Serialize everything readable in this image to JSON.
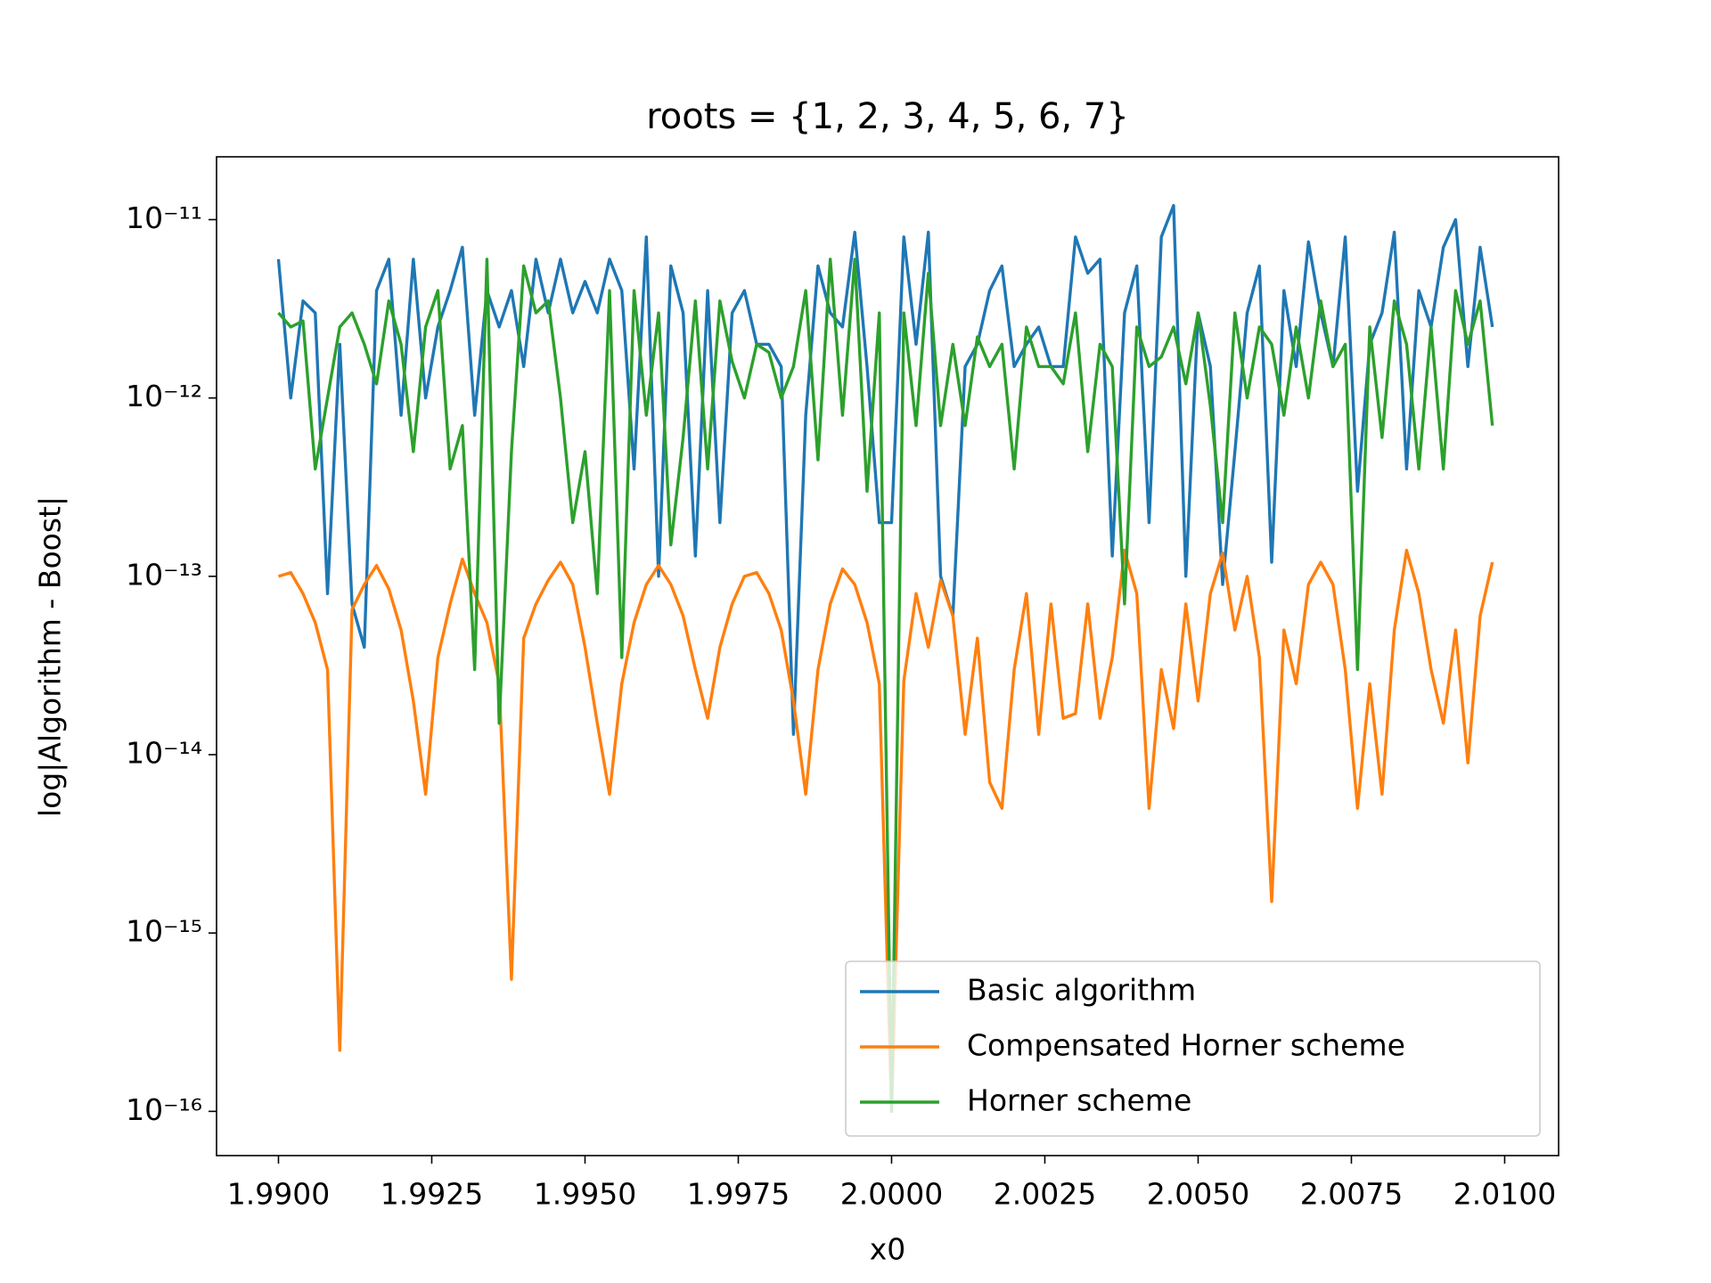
{
  "chart_data": {
    "type": "line",
    "title": "roots = {1, 2, 3, 4, 5, 6, 7}",
    "xlabel": "x0",
    "ylabel": "log|Algorithm - Boost|",
    "yscale": "log",
    "legend_loc": "lower right",
    "xlim": [
      1.98899,
      2.01088
    ],
    "ylim": [
      5.65e-17,
      2.25e-11
    ],
    "xticks": [
      {
        "value": 1.99,
        "label": "1.9900"
      },
      {
        "value": 1.9925,
        "label": "1.9925"
      },
      {
        "value": 1.995,
        "label": "1.9950"
      },
      {
        "value": 1.9975,
        "label": "1.9975"
      },
      {
        "value": 2,
        "label": "2.0000"
      },
      {
        "value": 2.0025,
        "label": "2.0025"
      },
      {
        "value": 2.005,
        "label": "2.0050"
      },
      {
        "value": 2.0075,
        "label": "2.0075"
      },
      {
        "value": 2.01,
        "label": "2.0100"
      }
    ],
    "yticks": [
      {
        "value": 1e-16,
        "label": "10⁻¹⁶"
      },
      {
        "value": 1e-15,
        "label": "10⁻¹⁵"
      },
      {
        "value": 1e-14,
        "label": "10⁻¹⁴"
      },
      {
        "value": 1e-13,
        "label": "10⁻¹³"
      },
      {
        "value": 1e-12,
        "label": "10⁻¹²"
      },
      {
        "value": 1e-11,
        "label": "10⁻¹¹"
      }
    ],
    "x": [
      1.99,
      1.9902,
      1.9904,
      1.9906,
      1.9908,
      1.991,
      1.9912,
      1.9914,
      1.9916,
      1.9918,
      1.992,
      1.9922,
      1.9924,
      1.9926,
      1.9928,
      1.993,
      1.9932,
      1.9934,
      1.9936,
      1.9938,
      1.994,
      1.9942,
      1.9944,
      1.9946,
      1.9948,
      1.995,
      1.9952,
      1.9954,
      1.9956,
      1.9958,
      1.996,
      1.9962,
      1.9964,
      1.9966,
      1.9968,
      1.997,
      1.9972,
      1.9974,
      1.9976,
      1.9978,
      1.998,
      1.9982,
      1.9984,
      1.9986,
      1.9988,
      1.999,
      1.9992,
      1.9994,
      1.9996,
      1.9998,
      2.0,
      2.0002,
      2.0004,
      2.0006,
      2.0008,
      2.001,
      2.0012,
      2.0014,
      2.0016,
      2.0018,
      2.002,
      2.0022,
      2.0024,
      2.0026,
      2.0028,
      2.003,
      2.0032,
      2.0034,
      2.0036,
      2.0038,
      2.004,
      2.0042,
      2.0044,
      2.0046,
      2.0048,
      2.005,
      2.0052,
      2.0054,
      2.0056,
      2.0058,
      2.006,
      2.0062,
      2.0064,
      2.0066,
      2.0068,
      2.007,
      2.0072,
      2.0074,
      2.0076,
      2.0078,
      2.008,
      2.0082,
      2.0084,
      2.0086,
      2.0088,
      2.009,
      2.0092,
      2.0094,
      2.0096,
      2.0098
    ],
    "series": [
      {
        "name": "Basic algorithm",
        "color": "#1f77b4",
        "values": [
          6e-12,
          1e-12,
          3.5e-12,
          3e-12,
          8e-14,
          2e-12,
          7e-14,
          4e-14,
          4e-12,
          6e-12,
          8e-13,
          6e-12,
          1e-12,
          2.5e-12,
          4e-12,
          7e-12,
          8e-13,
          4e-12,
          2.5e-12,
          4e-12,
          1.5e-12,
          6e-12,
          3e-12,
          6e-12,
          3e-12,
          4.5e-12,
          3e-12,
          6e-12,
          4e-12,
          4e-13,
          8e-12,
          1e-13,
          5.5e-12,
          3e-12,
          1.3e-13,
          4e-12,
          2e-13,
          3e-12,
          4e-12,
          2e-12,
          2e-12,
          1.5e-12,
          1.3e-14,
          8e-13,
          5.5e-12,
          3e-12,
          2.5e-12,
          8.5e-12,
          1.5e-12,
          2e-13,
          2e-13,
          8e-12,
          2e-12,
          8.5e-12,
          1e-13,
          6e-14,
          1.5e-12,
          2e-12,
          4e-12,
          5.5e-12,
          1.5e-12,
          2e-12,
          2.5e-12,
          1.5e-12,
          1.5e-12,
          8e-12,
          5e-12,
          6e-12,
          1.3e-13,
          3e-12,
          5.5e-12,
          2e-13,
          8e-12,
          1.2e-11,
          1e-13,
          3e-12,
          1.5e-12,
          9e-14,
          5e-13,
          3e-12,
          5.5e-12,
          1.2e-13,
          4e-12,
          1.5e-12,
          7.5e-12,
          3e-12,
          1.5e-12,
          8e-12,
          3e-13,
          2e-12,
          3e-12,
          8.5e-12,
          4e-13,
          4e-12,
          2.5e-12,
          7e-12,
          1e-11,
          1.5e-12,
          7e-12,
          2.5e-12
        ]
      },
      {
        "name": "Compensated Horner scheme",
        "color": "#ff7f0e",
        "values": [
          1e-13,
          1.05e-13,
          8e-14,
          5.5e-14,
          3e-14,
          2.2e-16,
          6.5e-14,
          9e-14,
          1.15e-13,
          8.5e-14,
          5e-14,
          2e-14,
          6e-15,
          3.5e-14,
          7e-14,
          1.25e-13,
          8e-14,
          5.5e-14,
          2.5e-14,
          5.5e-16,
          4.5e-14,
          7e-14,
          9.5e-14,
          1.2e-13,
          9e-14,
          4e-14,
          1.5e-14,
          6e-15,
          2.5e-14,
          5.5e-14,
          9e-14,
          1.15e-13,
          9e-14,
          6e-14,
          3e-14,
          1.6e-14,
          4e-14,
          7e-14,
          1e-13,
          1.05e-13,
          8e-14,
          5e-14,
          2e-14,
          6e-15,
          3e-14,
          7e-14,
          1.1e-13,
          9e-14,
          5.5e-14,
          2.5e-14,
          1e-16,
          2.6e-14,
          8e-14,
          4e-14,
          9.5e-14,
          6e-14,
          1.3e-14,
          4.5e-14,
          7e-15,
          5e-15,
          3e-14,
          8e-14,
          1.3e-14,
          7e-14,
          1.6e-14,
          1.7e-14,
          7e-14,
          1.6e-14,
          3.5e-14,
          1.4e-13,
          8e-14,
          5e-15,
          3e-14,
          1.4e-14,
          7e-14,
          2e-14,
          8e-14,
          1.35e-13,
          5e-14,
          1e-13,
          3.5e-14,
          1.5e-15,
          5e-14,
          2.5e-14,
          9e-14,
          1.2e-13,
          9e-14,
          3e-14,
          5e-15,
          2.5e-14,
          6e-15,
          5e-14,
          1.4e-13,
          8e-14,
          3e-14,
          1.5e-14,
          5e-14,
          9e-15,
          6e-14,
          1.2e-13
        ]
      },
      {
        "name": "Horner scheme",
        "color": "#2ca02c",
        "values": [
          3e-12,
          2.5e-12,
          2.7e-12,
          4e-13,
          1e-12,
          2.5e-12,
          3e-12,
          2e-12,
          1.2e-12,
          3.5e-12,
          2e-12,
          5e-13,
          2.5e-12,
          4e-12,
          4e-13,
          7e-13,
          3e-14,
          6e-12,
          1.5e-14,
          5e-13,
          5.5e-12,
          3e-12,
          3.5e-12,
          1e-12,
          2e-13,
          5e-13,
          8e-14,
          4e-12,
          3.5e-14,
          4e-12,
          8e-13,
          3e-12,
          1.5e-13,
          6e-13,
          3.5e-12,
          4e-13,
          3.5e-12,
          1.6e-12,
          1e-12,
          2e-12,
          1.8e-12,
          1e-12,
          1.5e-12,
          4e-12,
          4.5e-13,
          6e-12,
          8e-13,
          6e-12,
          3e-13,
          3e-12,
          1e-16,
          3e-12,
          7e-13,
          5e-12,
          7e-13,
          2e-12,
          7e-13,
          2.2e-12,
          1.5e-12,
          2e-12,
          4e-13,
          2.5e-12,
          1.5e-12,
          1.5e-12,
          1.2e-12,
          3e-12,
          5e-13,
          2e-12,
          1.5e-12,
          7e-14,
          2.5e-12,
          1.5e-12,
          1.7e-12,
          2.5e-12,
          1.2e-12,
          3e-12,
          9e-13,
          2e-13,
          3e-12,
          1e-12,
          2.5e-12,
          2e-12,
          8e-13,
          2.5e-12,
          1e-12,
          3.5e-12,
          1.5e-12,
          2e-12,
          3e-14,
          2.5e-12,
          6e-13,
          3.5e-12,
          2e-12,
          4e-13,
          2.5e-12,
          4e-13,
          4e-12,
          2e-12,
          3.5e-12,
          7e-13
        ]
      }
    ]
  }
}
